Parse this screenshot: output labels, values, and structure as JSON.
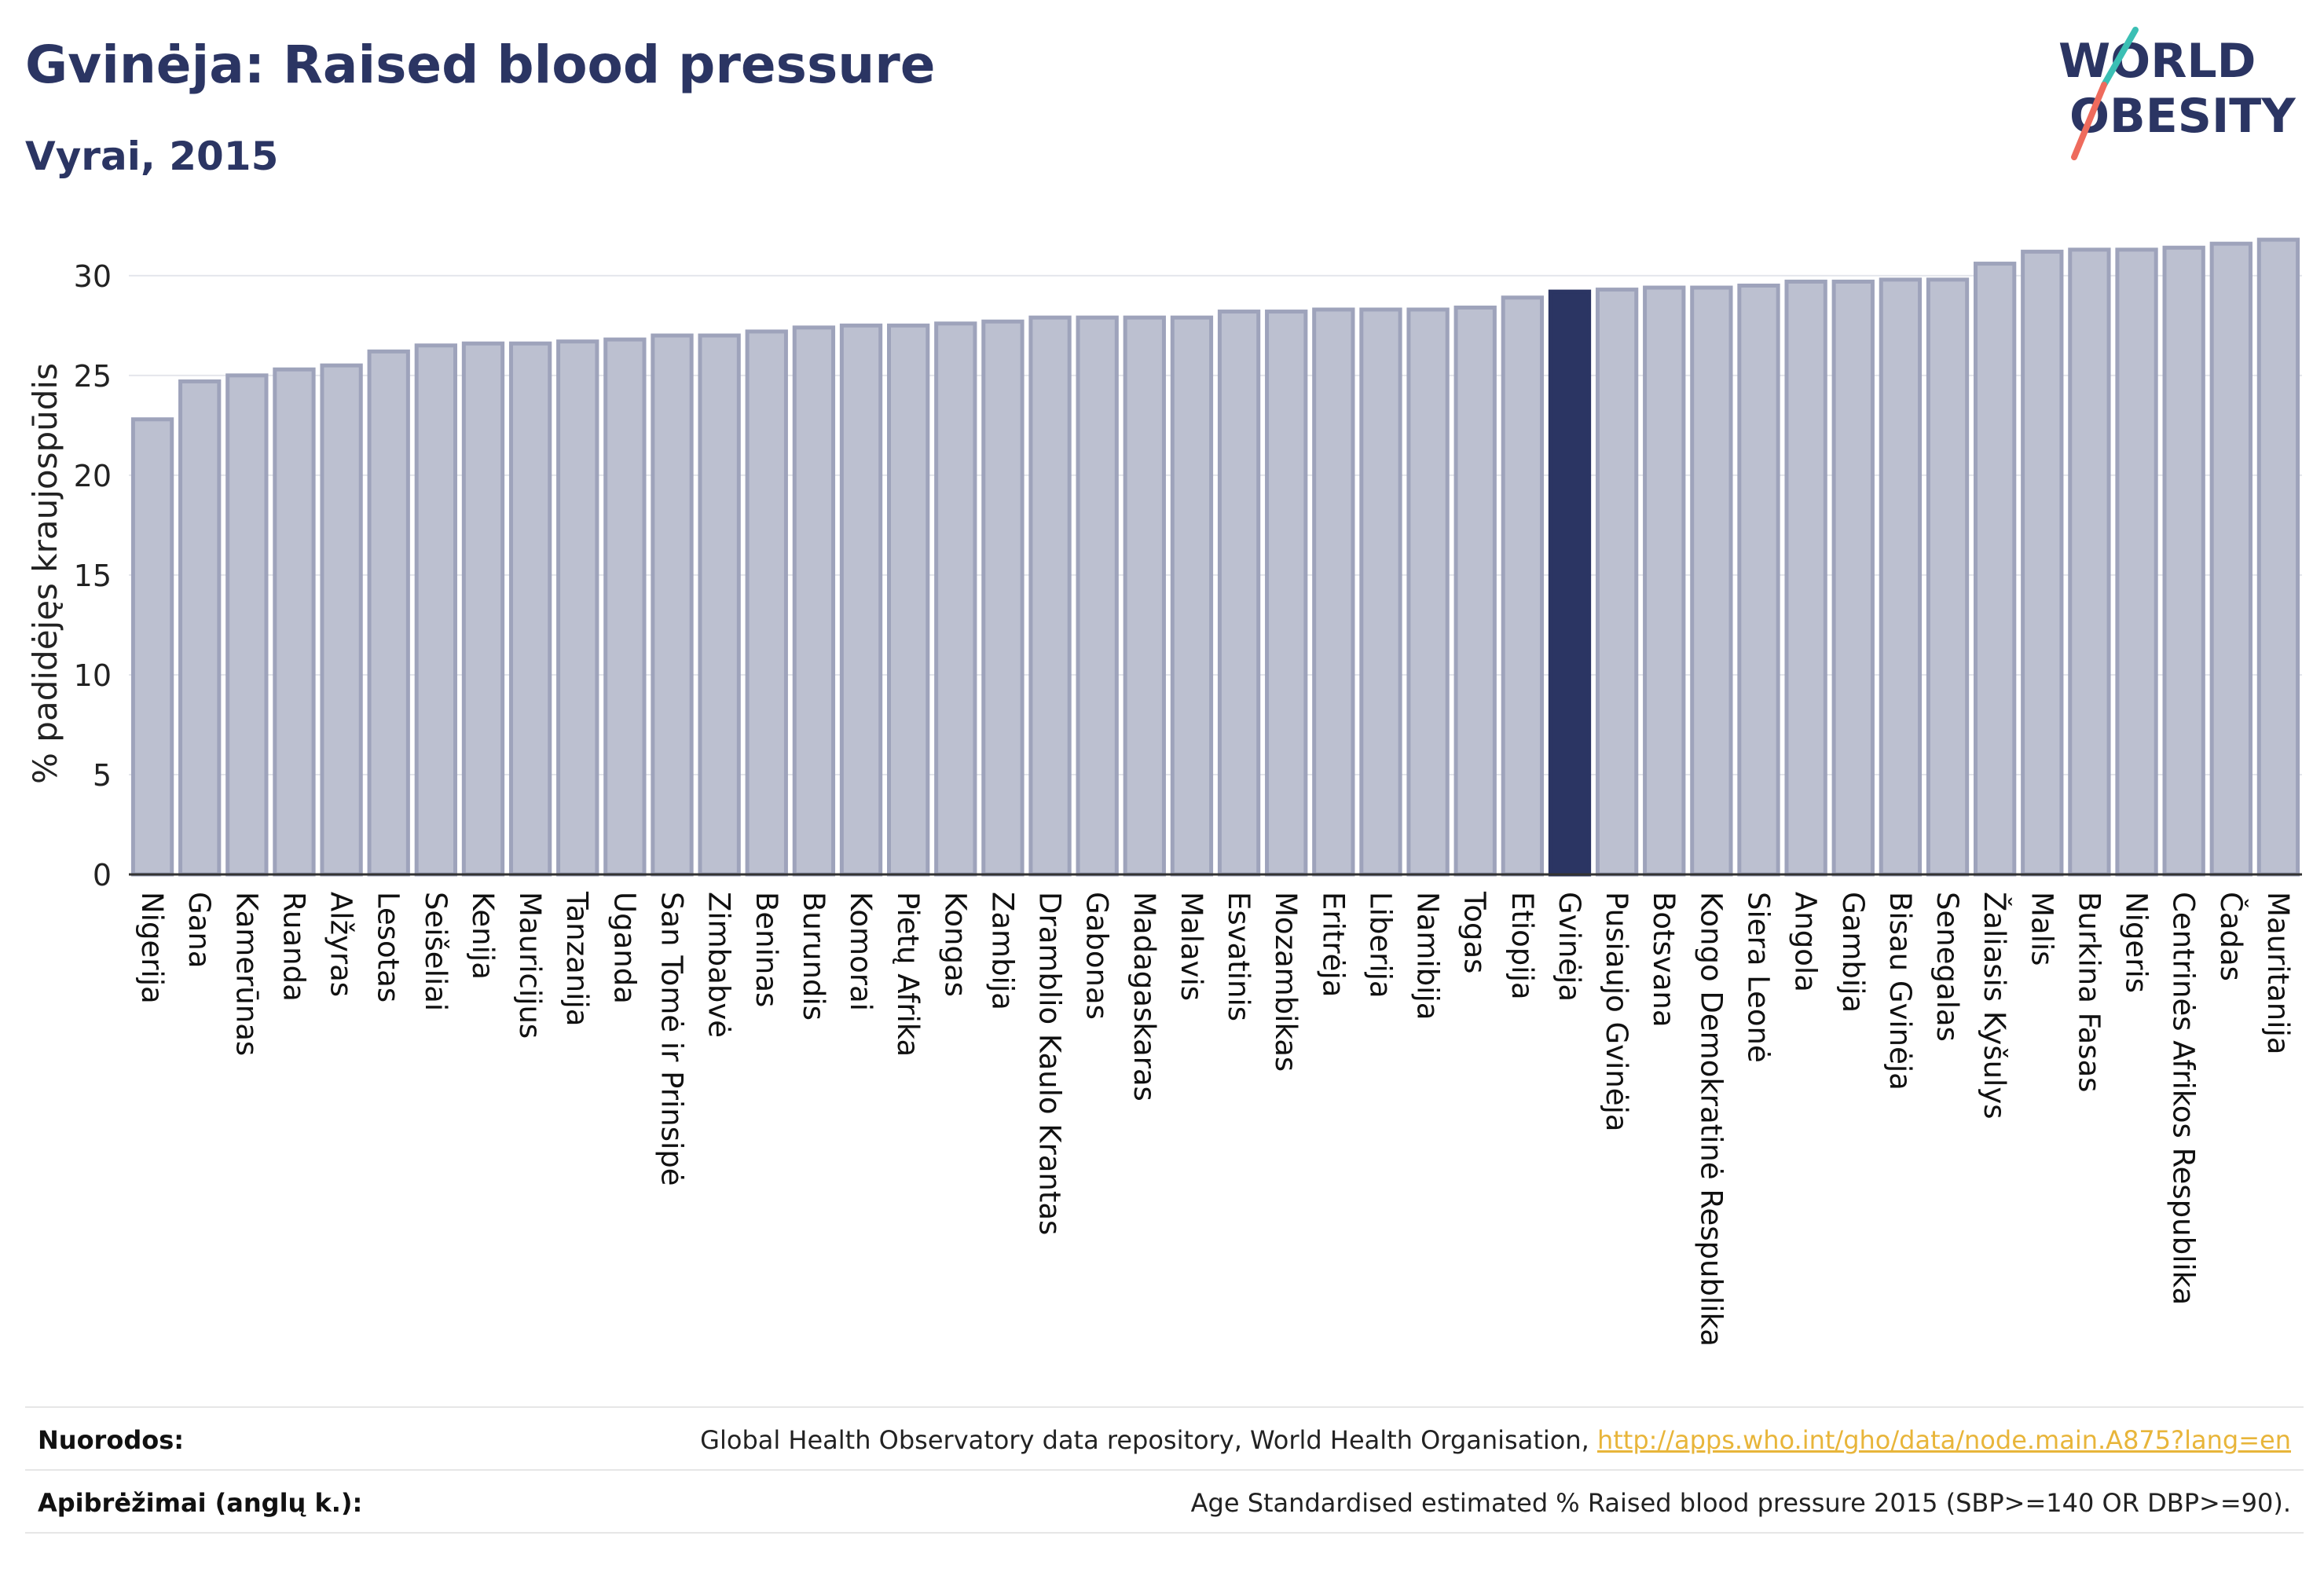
{
  "header": {
    "title": "Gvinėja: Raised blood pressure",
    "subtitle": "Vyrai, 2015"
  },
  "logo": {
    "line1": "WORLD",
    "line2": "OBESITY"
  },
  "colors": {
    "highlight": "#2b3563",
    "bar": "#bcc0d0",
    "bar_stroke": "#9ea3bb",
    "text_dark": "#2b3563",
    "link": "#e8b53a",
    "logo_teal": "#3bbfb4",
    "logo_coral": "#ee6b5d"
  },
  "chart_data": {
    "type": "bar",
    "ylabel": "% padidėjęs kraujospūdis",
    "ylim": [
      0,
      32
    ],
    "yticks": [
      0,
      5,
      10,
      15,
      20,
      25,
      30
    ],
    "highlight_category": "Gvinėja",
    "grid": true,
    "categories": [
      "Nigerija",
      "Gana",
      "Kamerūnas",
      "Ruanda",
      "Alžyras",
      "Lesotas",
      "Seišeliai",
      "Kenija",
      "Mauricijus",
      "Tanzanija",
      "Uganda",
      "San Tomė ir Prinsipė",
      "Zimbabvė",
      "Beninas",
      "Burundis",
      "Komorai",
      "Pietų Afrika",
      "Kongas",
      "Zambija",
      "Dramblio Kaulo Krantas",
      "Gabonas",
      "Madagaskaras",
      "Malavis",
      "Esvatinis",
      "Mozambikas",
      "Eritrėja",
      "Liberija",
      "Namibija",
      "Togas",
      "Etiopija",
      "Gvinėja",
      "Pusiaujo Gvinėja",
      "Botsvana",
      "Kongo Demokratinė Respublika",
      "Siera Leonė",
      "Angola",
      "Gambija",
      "Bisau Gvinėja",
      "Senegalas",
      "Žaliasis Kyšulys",
      "Malis",
      "Burkina Fasas",
      "Nigeris",
      "Centrinės Afrikos Respublika",
      "Čadas",
      "Mauritanija"
    ],
    "values": [
      22.8,
      24.7,
      25.0,
      25.3,
      25.5,
      26.2,
      26.5,
      26.6,
      26.6,
      26.7,
      26.8,
      27.0,
      27.0,
      27.2,
      27.4,
      27.5,
      27.5,
      27.6,
      27.7,
      27.9,
      27.9,
      27.9,
      27.9,
      28.2,
      28.2,
      28.3,
      28.3,
      28.3,
      28.4,
      28.9,
      29.2,
      29.3,
      29.4,
      29.4,
      29.5,
      29.7,
      29.7,
      29.8,
      29.8,
      30.6,
      31.2,
      31.3,
      31.3,
      31.4,
      31.6,
      31.8
    ]
  },
  "footer": {
    "sources_label": "Nuorodos:",
    "sources_text": "Global Health Observatory data repository, World Health Organisation, ",
    "sources_link": "http://apps.who.int/gho/data/node.main.A875?lang=en",
    "definitions_label": "Apibrėžimai (anglų k.):",
    "definitions_text": "Age Standardised estimated % Raised blood pressure 2015 (SBP>=140 OR DBP>=90)."
  }
}
